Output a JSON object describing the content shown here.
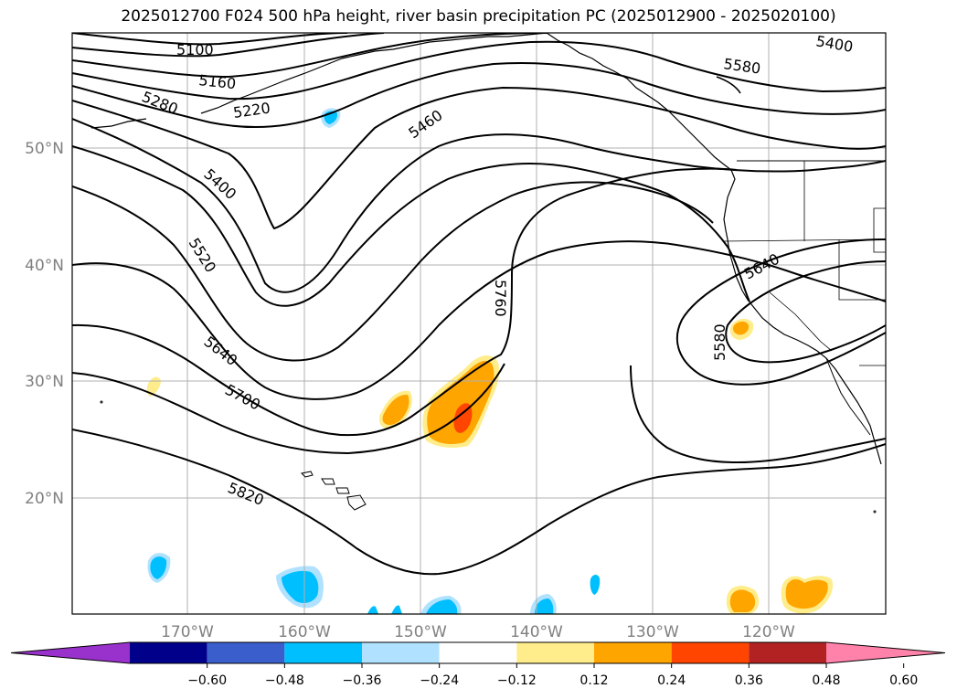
{
  "title": "2025012700 F024 500 hPa height, river basin precipitation PC (2025012900 - 2025020100)",
  "map": {
    "lat_labels": [
      "50°N",
      "40°N",
      "30°N",
      "20°N"
    ],
    "lon_labels": [
      "170°W",
      "160°W",
      "150°W",
      "140°W",
      "130°W",
      "120°W"
    ],
    "height_contours": [
      "5100",
      "5160",
      "5220",
      "5280",
      "5400",
      "5400",
      "5460",
      "5520",
      "5580",
      "5580",
      "5640",
      "5640",
      "5700",
      "5760",
      "5820"
    ],
    "colors": {
      "coast": "#000000",
      "grid": "#b0b0b0",
      "contour": "#000000"
    }
  },
  "colorbar": {
    "bins": [
      {
        "color": "#9932cc"
      },
      {
        "color": "#00008b"
      },
      {
        "color": "#3a5fcd"
      },
      {
        "color": "#00bfff"
      },
      {
        "color": "#b0e2ff"
      },
      {
        "color": "#ffffff"
      },
      {
        "color": "#ffec8b"
      },
      {
        "color": "#ffa500"
      },
      {
        "color": "#ff4500"
      },
      {
        "color": "#b22222"
      },
      {
        "color": "#ff82ab"
      }
    ],
    "ticks": [
      "−0.60",
      "−0.48",
      "−0.36",
      "−0.24",
      "−0.12",
      "0.12",
      "0.24",
      "0.36",
      "0.48",
      "0.60"
    ]
  }
}
